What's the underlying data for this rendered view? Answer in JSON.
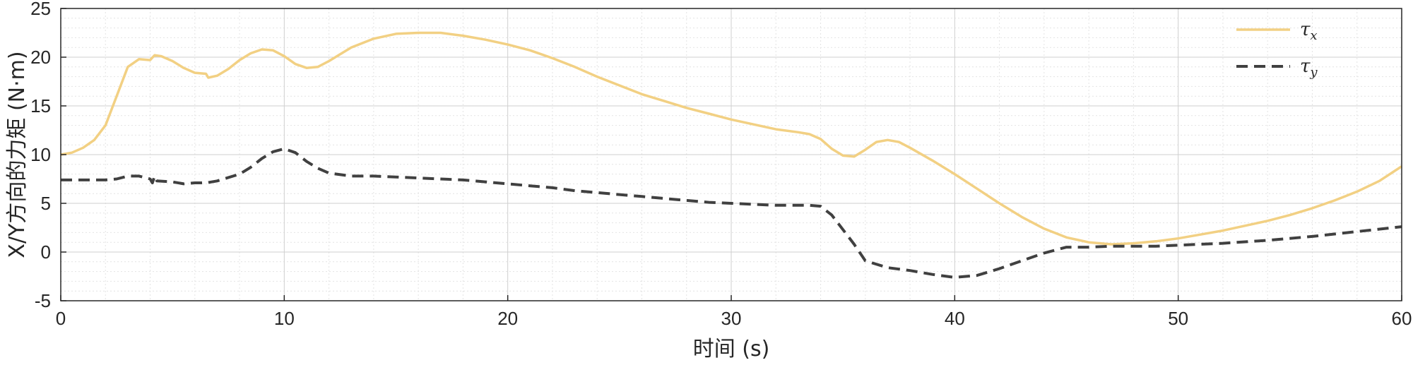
{
  "chart_data": {
    "type": "line",
    "title": "",
    "xlabel": "时间 (s)",
    "ylabel": "X/Y方向的力矩 (N·m)",
    "xlim": [
      0,
      60
    ],
    "ylim": [
      -5,
      25
    ],
    "xticks": [
      0,
      10,
      20,
      30,
      40,
      50,
      60
    ],
    "yticks": [
      -5,
      0,
      5,
      10,
      15,
      20,
      25
    ],
    "xtick_labels": [
      "0",
      "10",
      "20",
      "30",
      "40",
      "50",
      "60"
    ],
    "ytick_labels": [
      "-5",
      "0",
      "5",
      "10",
      "15",
      "20",
      "25"
    ],
    "grid": true,
    "minor_grid": true,
    "legend_position": "top-right",
    "series": [
      {
        "name": "τ",
        "name_subscript": "x",
        "color": "#F2D083",
        "style": "solid",
        "x": [
          0,
          0.5,
          1,
          1.5,
          2,
          2.5,
          3,
          3.5,
          4,
          4.2,
          4.5,
          5,
          5.5,
          6,
          6.5,
          6.6,
          7,
          7.5,
          8,
          8.5,
          9,
          9.5,
          10,
          10.5,
          11,
          11.5,
          12,
          13,
          14,
          15,
          16,
          17,
          18,
          19,
          20,
          21,
          22,
          23,
          24,
          25,
          26,
          27,
          28,
          29,
          30,
          31,
          32,
          33,
          33.5,
          34,
          34.5,
          35,
          35.5,
          36,
          36.5,
          37,
          37.5,
          38,
          39,
          40,
          41,
          42,
          43,
          44,
          45,
          46,
          47,
          48,
          49,
          50,
          51,
          52,
          53,
          54,
          55,
          56,
          57,
          58,
          59,
          60
        ],
        "values": [
          10,
          10.2,
          10.7,
          11.5,
          13,
          16,
          19,
          19.8,
          19.7,
          20.2,
          20.1,
          19.6,
          18.9,
          18.4,
          18.3,
          17.9,
          18.1,
          18.8,
          19.7,
          20.4,
          20.8,
          20.7,
          20.1,
          19.3,
          18.9,
          19,
          19.6,
          21,
          21.9,
          22.4,
          22.5,
          22.5,
          22.2,
          21.8,
          21.3,
          20.7,
          19.9,
          19,
          18,
          17.1,
          16.2,
          15.5,
          14.8,
          14.2,
          13.6,
          13.1,
          12.6,
          12.3,
          12.1,
          11.6,
          10.6,
          9.9,
          9.8,
          10.5,
          11.3,
          11.5,
          11.3,
          10.7,
          9.4,
          8,
          6.5,
          5,
          3.6,
          2.4,
          1.5,
          1,
          0.8,
          0.9,
          1.1,
          1.4,
          1.8,
          2.2,
          2.7,
          3.2,
          3.8,
          4.5,
          5.3,
          6.2,
          7.3,
          8.8
        ]
      },
      {
        "name": "τ",
        "name_subscript": "y",
        "color": "#404040",
        "style": "dashed",
        "x": [
          0,
          1,
          2,
          2.5,
          3,
          3.5,
          4,
          4.1,
          4.2,
          4.3,
          5,
          5.5,
          6,
          6.5,
          7,
          8,
          8.5,
          9,
          9.5,
          10,
          10.5,
          11,
          11.5,
          12,
          13,
          14,
          15,
          16,
          17,
          18,
          19,
          20,
          21,
          22,
          23,
          24,
          25,
          26,
          27,
          28,
          29,
          30,
          31,
          32,
          33,
          33.5,
          34,
          34.5,
          35,
          35.5,
          36,
          37,
          38,
          39,
          40,
          41,
          42,
          43,
          44,
          45,
          46,
          47,
          48,
          49,
          50,
          52,
          54,
          56,
          58,
          60
        ],
        "values": [
          7.4,
          7.4,
          7.4,
          7.5,
          7.8,
          7.8,
          7.5,
          7.1,
          7.8,
          7.3,
          7.2,
          7,
          7.1,
          7.1,
          7.3,
          8,
          8.7,
          9.6,
          10.3,
          10.6,
          10.2,
          9.3,
          8.6,
          8.1,
          7.8,
          7.8,
          7.7,
          7.6,
          7.5,
          7.4,
          7.2,
          7,
          6.8,
          6.6,
          6.3,
          6.1,
          5.9,
          5.7,
          5.5,
          5.3,
          5.1,
          5,
          4.9,
          4.8,
          4.8,
          4.8,
          4.7,
          3.8,
          2.3,
          0.8,
          -0.9,
          -1.6,
          -1.9,
          -2.3,
          -2.6,
          -2.4,
          -1.7,
          -0.9,
          -0.1,
          0.5,
          0.5,
          0.6,
          0.6,
          0.6,
          0.7,
          0.9,
          1.2,
          1.6,
          2.1,
          2.6
        ]
      }
    ]
  }
}
